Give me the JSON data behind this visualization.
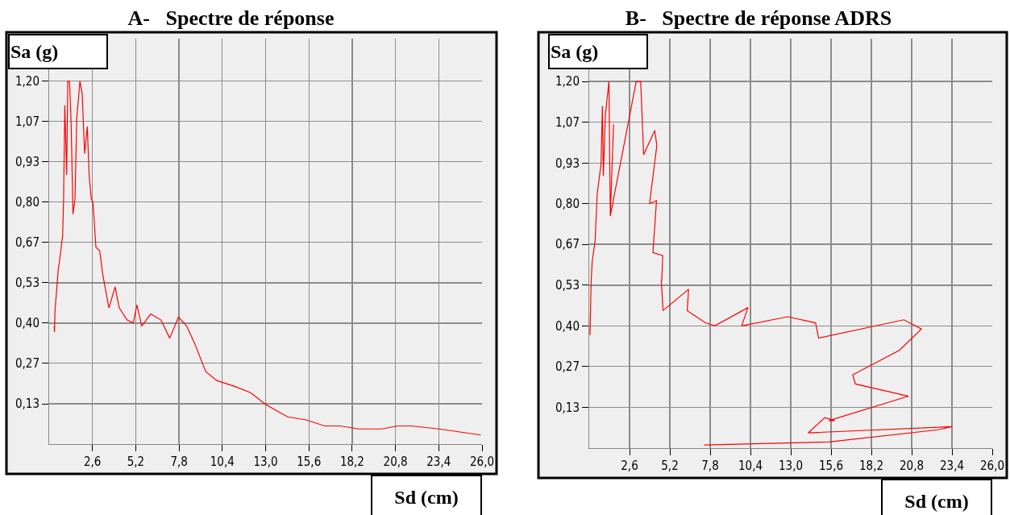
{
  "chart_data": [
    {
      "type": "line",
      "title": "A-   Spectre de réponse",
      "xlabel": "Sd (cm)",
      "ylabel": "Sa (g)",
      "grid": true,
      "xlim": [
        0,
        26
      ],
      "ylim": [
        0,
        1.34
      ],
      "xticks": [
        {
          "value": 2.6,
          "label": "2,6"
        },
        {
          "value": 5.2,
          "label": "5,2"
        },
        {
          "value": 7.8,
          "label": "7,8"
        },
        {
          "value": 10.4,
          "label": "10,4"
        },
        {
          "value": 13,
          "label": "13,0"
        },
        {
          "value": 15.6,
          "label": "15,6"
        },
        {
          "value": 18.2,
          "label": "18,2"
        },
        {
          "value": 20.8,
          "label": "20,8"
        },
        {
          "value": 23.4,
          "label": "23,4"
        },
        {
          "value": 26,
          "label": "26,0"
        }
      ],
      "yticks": [
        {
          "value": 0.133,
          "label": "0,13"
        },
        {
          "value": 0.267,
          "label": "0,27"
        },
        {
          "value": 0.4,
          "label": "0,40"
        },
        {
          "value": 0.533,
          "label": "0,53"
        },
        {
          "value": 0.667,
          "label": "0,67"
        },
        {
          "value": 0.8,
          "label": "0,80"
        },
        {
          "value": 0.933,
          "label": "0,93"
        },
        {
          "value": 1.067,
          "label": "1,07"
        },
        {
          "value": 1.2,
          "label": "1,20"
        }
      ],
      "series": [
        {
          "color": "#ff0000",
          "x": [
            0.3,
            0.32,
            0.35,
            0.55,
            0.61,
            0.81,
            0.87,
            0.94,
            1.05,
            1.12,
            1.22,
            1.32,
            1.43,
            1.55,
            1.66,
            1.85,
            1.98,
            2.13,
            2.29,
            2.4,
            2.53,
            2.63,
            2.81,
            3.03,
            3.22,
            3.59,
            3.96,
            4.21,
            4.68,
            5.05,
            5.27,
            5.56,
            6.1,
            6.72,
            7.24,
            7.77,
            8.26,
            8.76,
            9.4,
            10.06,
            11.17,
            12.1,
            13.03,
            14.33,
            15.44,
            16.55,
            17.48,
            18.6,
            19.98,
            20.91,
            21.75,
            23.42,
            25.93
          ],
          "values": [
            0.39,
            0.37,
            0.44,
            0.58,
            0.6,
            0.69,
            0.82,
            1.12,
            0.89,
            1.2,
            1.2,
            1.06,
            0.76,
            0.81,
            1.08,
            1.2,
            1.16,
            0.96,
            1.05,
            0.89,
            0.81,
            0.8,
            0.65,
            0.64,
            0.56,
            0.45,
            0.52,
            0.45,
            0.41,
            0.4,
            0.46,
            0.39,
            0.43,
            0.41,
            0.35,
            0.42,
            0.39,
            0.33,
            0.24,
            0.21,
            0.19,
            0.17,
            0.13,
            0.09,
            0.08,
            0.06,
            0.06,
            0.05,
            0.05,
            0.06,
            0.06,
            0.05,
            0.03
          ]
        }
      ]
    },
    {
      "type": "line",
      "title": "B-   Spectre de réponse ADRS",
      "xlabel": "Sd (cm)",
      "ylabel": "Sa (g)",
      "grid": true,
      "xlim": [
        0,
        26
      ],
      "ylim": [
        0,
        1.34
      ],
      "xticks": [
        {
          "value": 2.6,
          "label": "2,6"
        },
        {
          "value": 5.2,
          "label": "5,2"
        },
        {
          "value": 7.8,
          "label": "7,8"
        },
        {
          "value": 10.4,
          "label": "10,4"
        },
        {
          "value": 13,
          "label": "13,0"
        },
        {
          "value": 15.6,
          "label": "15,6"
        },
        {
          "value": 18.2,
          "label": "18,2"
        },
        {
          "value": 20.8,
          "label": "20,8"
        },
        {
          "value": 23.4,
          "label": "23,4"
        },
        {
          "value": 26,
          "label": "26,0"
        }
      ],
      "yticks": [
        {
          "value": 0.133,
          "label": "0,13"
        },
        {
          "value": 0.267,
          "label": "0,27"
        },
        {
          "value": 0.4,
          "label": "0,40"
        },
        {
          "value": 0.533,
          "label": "0,53"
        },
        {
          "value": 0.667,
          "label": "0,67"
        },
        {
          "value": 0.8,
          "label": "0,80"
        },
        {
          "value": 0.933,
          "label": "0,93"
        },
        {
          "value": 1.067,
          "label": "1,07"
        },
        {
          "value": 1.2,
          "label": "1,20"
        }
      ],
      "series": [
        {
          "color": "#ff0000",
          "x": [
            0.05,
            0.12,
            0.19,
            0.38,
            0.51,
            0.76,
            0.85,
            0.91,
            1.04,
            1.27,
            1.36,
            1.57,
            1.36,
            3.03,
            3.32,
            3.51,
            4.23,
            4.36,
            3.89,
            4.34,
            4.11,
            4.74,
            4.68,
            4.65,
            4.76,
            6.41,
            6.32,
            7.5,
            8.1,
            10.24,
            9.83,
            12.8,
            14.6,
            14.8,
            20.3,
            21.43,
            20.0,
            17.0,
            17.17,
            20.6,
            15.46,
            15.84,
            15.2,
            14.13,
            23.4,
            22.5,
            15.46,
            7.4
          ],
          "values": [
            0.37,
            0.54,
            0.61,
            0.68,
            0.83,
            0.93,
            1.12,
            0.89,
            1.09,
            1.2,
            0.76,
            1.06,
            0.76,
            1.2,
            1.2,
            0.96,
            1.04,
            0.99,
            0.8,
            0.81,
            0.64,
            0.63,
            0.55,
            0.55,
            0.45,
            0.52,
            0.45,
            0.41,
            0.4,
            0.46,
            0.4,
            0.43,
            0.41,
            0.36,
            0.42,
            0.39,
            0.32,
            0.24,
            0.21,
            0.17,
            0.09,
            0.09,
            0.1,
            0.05,
            0.07,
            0.06,
            0.02,
            0.01
          ]
        }
      ]
    }
  ]
}
